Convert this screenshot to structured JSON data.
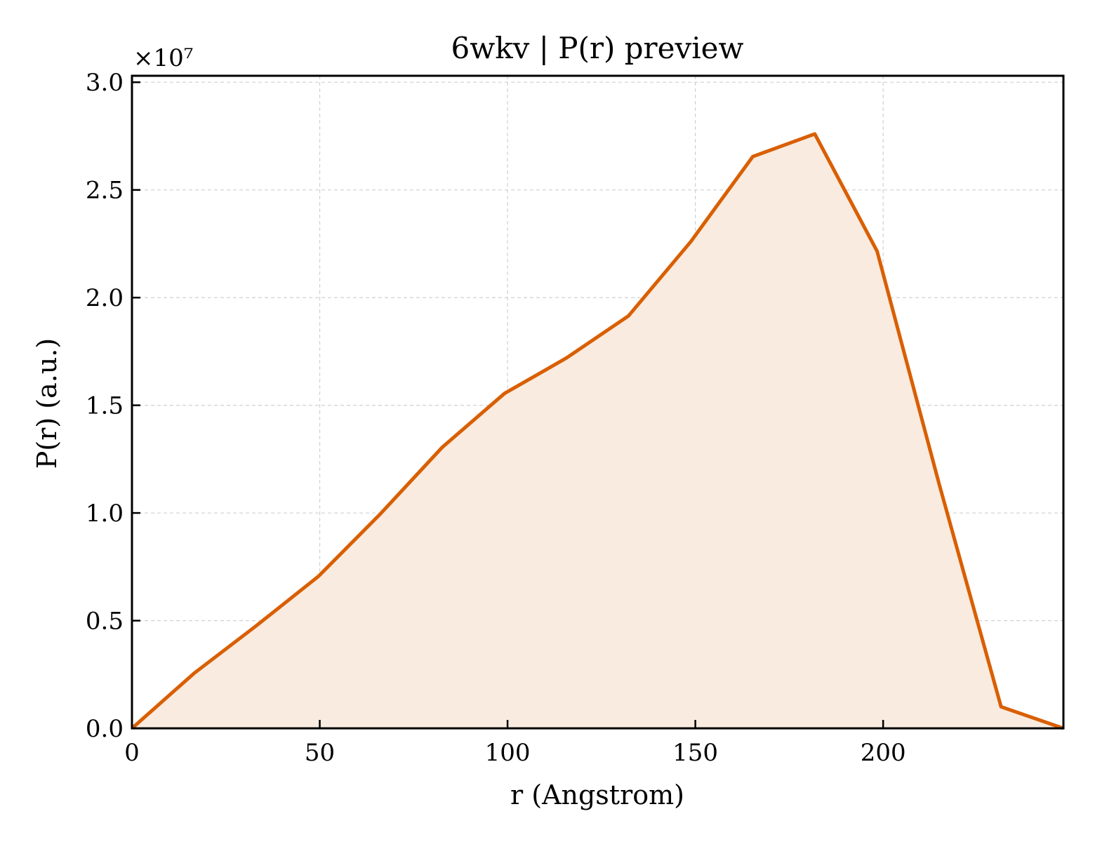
{
  "chart_data": {
    "type": "area",
    "title": "6wkv | P(r) preview",
    "xlabel": "r (Angstrom)",
    "ylabel": "P(r) (a.u.)",
    "y_offset_label": "×10⁷",
    "xlim": [
      0,
      248
    ],
    "ylim": [
      0,
      30300000.0
    ],
    "x_ticks": [
      0,
      50,
      100,
      150,
      200
    ],
    "x_tick_labels": [
      "0",
      "50",
      "100",
      "150",
      "200"
    ],
    "y_ticks": [
      0,
      5000000,
      10000000,
      15000000,
      20000000,
      25000000,
      30000000
    ],
    "y_tick_labels": [
      "0.0",
      "0.5",
      "1.0",
      "1.5",
      "2.0",
      "2.5",
      "3.0"
    ],
    "grid": true,
    "legend": "none",
    "series": [
      {
        "x": [
          0,
          16.5,
          33,
          49.6,
          66.1,
          82.6,
          99.2,
          115.7,
          132.2,
          148.8,
          165.3,
          181.8,
          198.4,
          214.9,
          231.4,
          248
        ],
        "y": [
          0,
          2550000,
          4750000,
          7050000,
          9950000,
          13050000,
          15550000,
          17200000,
          19150000,
          22600000,
          26550000,
          27600000,
          22150000,
          11350000,
          1000000,
          0
        ],
        "color": "#d95f02"
      }
    ],
    "colors": {
      "line": "#d95f02",
      "fill": "#f9ebe0",
      "grid": "#d0d0d0"
    }
  }
}
